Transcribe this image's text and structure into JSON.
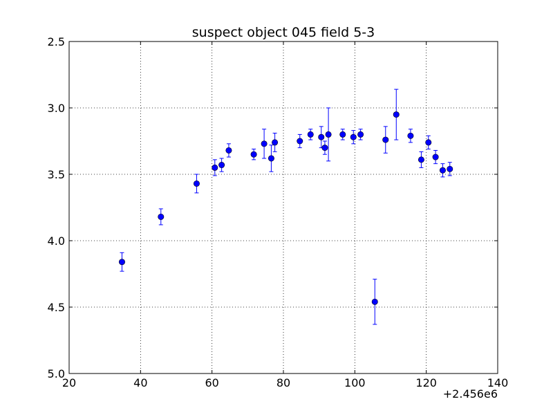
{
  "chart_data": {
    "type": "scatter",
    "title": "suspect object 045 field 5-3",
    "xlabel": "",
    "ylabel": "",
    "x_offset_label": "+2.456e6",
    "xlim": [
      20,
      140
    ],
    "ylim": [
      2.5,
      5.0
    ],
    "y_inverted": true,
    "grid": true,
    "grid_style": "dotted",
    "marker_color": "#0000ff",
    "x_ticks": [
      "20",
      "40",
      "60",
      "80",
      "100",
      "120",
      "140"
    ],
    "y_ticks": [
      "2.5",
      "3.0",
      "3.5",
      "4.0",
      "4.5",
      "5.0"
    ],
    "series": [
      {
        "points": [
          {
            "x": 34.8,
            "y": 4.16,
            "err": 0.07
          },
          {
            "x": 45.7,
            "y": 3.82,
            "err": 0.06
          },
          {
            "x": 55.7,
            "y": 3.57,
            "err": 0.07
          },
          {
            "x": 60.8,
            "y": 3.45,
            "err": 0.06
          },
          {
            "x": 62.7,
            "y": 3.43,
            "err": 0.05
          },
          {
            "x": 64.7,
            "y": 3.32,
            "err": 0.05
          },
          {
            "x": 71.7,
            "y": 3.35,
            "err": 0.04
          },
          {
            "x": 74.6,
            "y": 3.27,
            "err": 0.11
          },
          {
            "x": 76.6,
            "y": 3.38,
            "err": 0.1
          },
          {
            "x": 77.6,
            "y": 3.26,
            "err": 0.07
          },
          {
            "x": 84.6,
            "y": 3.25,
            "err": 0.05
          },
          {
            "x": 87.6,
            "y": 3.2,
            "err": 0.04
          },
          {
            "x": 90.6,
            "y": 3.22,
            "err": 0.08
          },
          {
            "x": 91.6,
            "y": 3.3,
            "err": 0.05
          },
          {
            "x": 92.6,
            "y": 3.2,
            "err": 0.2
          },
          {
            "x": 96.6,
            "y": 3.2,
            "err": 0.04
          },
          {
            "x": 99.6,
            "y": 3.22,
            "err": 0.05
          },
          {
            "x": 101.6,
            "y": 3.2,
            "err": 0.04
          },
          {
            "x": 105.6,
            "y": 4.46,
            "err": 0.17
          },
          {
            "x": 108.6,
            "y": 3.24,
            "err": 0.1
          },
          {
            "x": 111.6,
            "y": 3.05,
            "err": 0.19
          },
          {
            "x": 115.6,
            "y": 3.21,
            "err": 0.05
          },
          {
            "x": 118.6,
            "y": 3.39,
            "err": 0.06
          },
          {
            "x": 120.6,
            "y": 3.26,
            "err": 0.05
          },
          {
            "x": 122.6,
            "y": 3.37,
            "err": 0.05
          },
          {
            "x": 124.6,
            "y": 3.47,
            "err": 0.05
          },
          {
            "x": 126.6,
            "y": 3.46,
            "err": 0.05
          }
        ]
      }
    ]
  }
}
